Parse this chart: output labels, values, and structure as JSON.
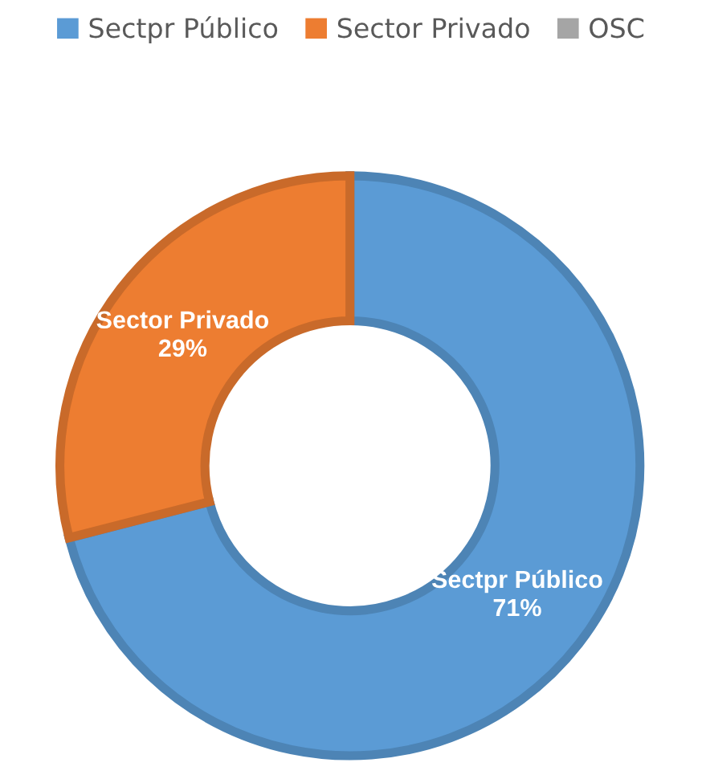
{
  "chart_data": {
    "type": "donut",
    "categories": [
      "Sectpr Público",
      "Sector Privado",
      "OSC"
    ],
    "values": [
      71,
      29,
      0
    ],
    "colors": [
      "#5b9bd5",
      "#ed7d31",
      "#a5a5a5"
    ],
    "value_labels": [
      "71%",
      "29%",
      null
    ],
    "legend": "top"
  }
}
